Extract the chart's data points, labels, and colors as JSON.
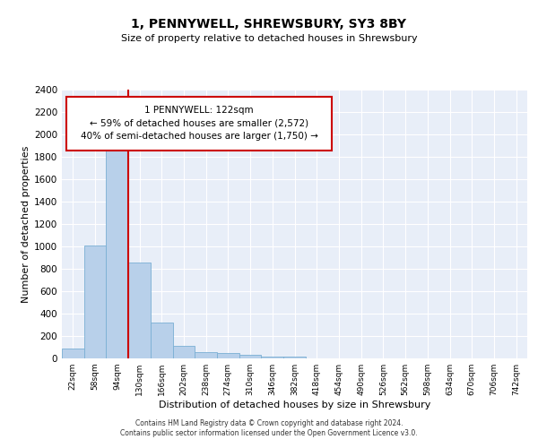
{
  "title": "1, PENNYWELL, SHREWSBURY, SY3 8BY",
  "subtitle": "Size of property relative to detached houses in Shrewsbury",
  "xlabel": "Distribution of detached houses by size in Shrewsbury",
  "ylabel": "Number of detached properties",
  "bin_labels": [
    "22sqm",
    "58sqm",
    "94sqm",
    "130sqm",
    "166sqm",
    "202sqm",
    "238sqm",
    "274sqm",
    "310sqm",
    "346sqm",
    "382sqm",
    "418sqm",
    "454sqm",
    "490sqm",
    "526sqm",
    "562sqm",
    "598sqm",
    "634sqm",
    "670sqm",
    "706sqm",
    "742sqm"
  ],
  "bin_values": [
    90,
    1010,
    1900,
    860,
    320,
    115,
    55,
    50,
    35,
    20,
    20,
    0,
    0,
    0,
    0,
    0,
    0,
    0,
    0,
    0,
    0
  ],
  "bar_color": "#b8d0ea",
  "bar_edge_color": "#7aafd4",
  "vline_x_index": 2,
  "vline_color": "#cc0000",
  "annotation_box_edge_color": "#cc0000",
  "annotation_text_line1": "1 PENNYWELL: 122sqm",
  "annotation_text_line2": "← 59% of detached houses are smaller (2,572)",
  "annotation_text_line3": "40% of semi-detached houses are larger (1,750) →",
  "ylim": [
    0,
    2400
  ],
  "yticks": [
    0,
    200,
    400,
    600,
    800,
    1000,
    1200,
    1400,
    1600,
    1800,
    2000,
    2200,
    2400
  ],
  "background_color": "#e8eef8",
  "grid_color": "#ffffff",
  "footer_line1": "Contains HM Land Registry data © Crown copyright and database right 2024.",
  "footer_line2": "Contains public sector information licensed under the Open Government Licence v3.0."
}
